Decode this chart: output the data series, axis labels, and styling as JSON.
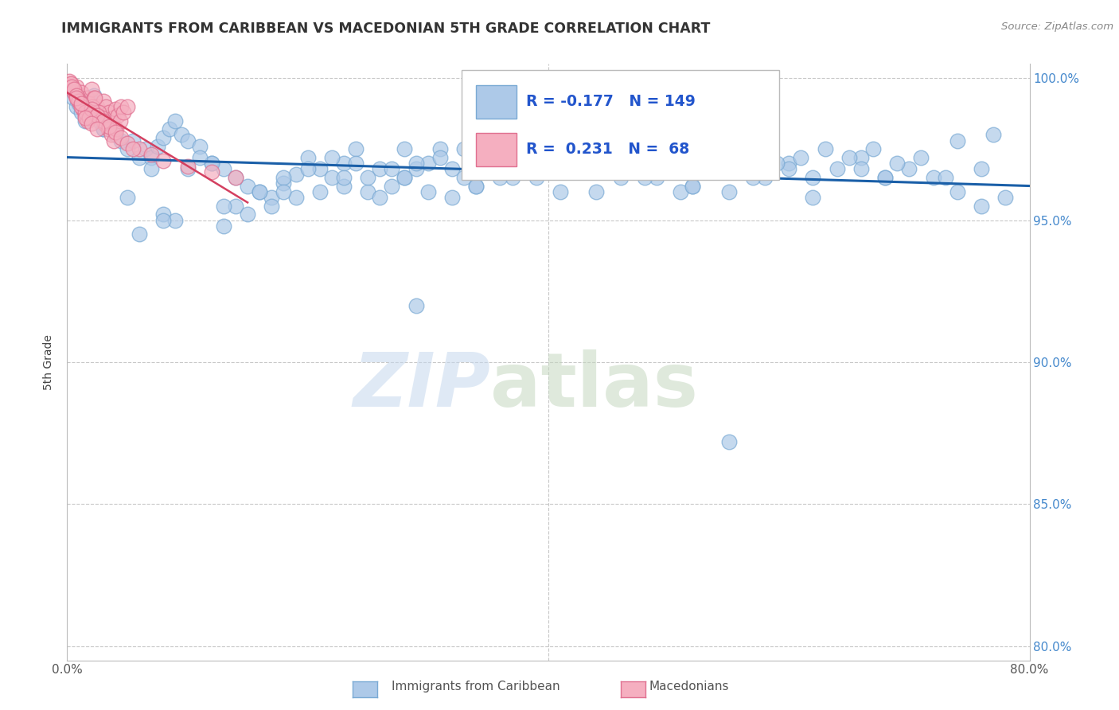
{
  "title": "IMMIGRANTS FROM CARIBBEAN VS MACEDONIAN 5TH GRADE CORRELATION CHART",
  "source": "Source: ZipAtlas.com",
  "ylabel": "5th Grade",
  "xlim": [
    0.0,
    0.8
  ],
  "ylim": [
    0.795,
    1.005
  ],
  "xtick_positions": [
    0.0,
    0.1,
    0.2,
    0.3,
    0.4,
    0.5,
    0.6,
    0.7,
    0.8
  ],
  "xticklabels": [
    "0.0%",
    "",
    "",
    "",
    "",
    "",
    "",
    "",
    "80.0%"
  ],
  "ytick_positions": [
    0.8,
    0.85,
    0.9,
    0.95,
    1.0
  ],
  "yticklabels_right": [
    "80.0%",
    "85.0%",
    "90.0%",
    "95.0%",
    "100.0%"
  ],
  "blue_R": -0.177,
  "blue_N": 149,
  "pink_R": 0.231,
  "pink_N": 68,
  "blue_color": "#adc9e8",
  "blue_edge": "#7aaad4",
  "pink_color": "#f5afc0",
  "pink_edge": "#e07090",
  "blue_line_color": "#1a5fa8",
  "pink_line_color": "#d44060",
  "legend_color": "#2255cc",
  "grid_color": "#c8c8c8",
  "blue_scatter_x": [
    0.005,
    0.008,
    0.01,
    0.012,
    0.015,
    0.018,
    0.02,
    0.022,
    0.025,
    0.028,
    0.03,
    0.035,
    0.04,
    0.045,
    0.05,
    0.055,
    0.06,
    0.065,
    0.07,
    0.075,
    0.08,
    0.085,
    0.09,
    0.095,
    0.1,
    0.11,
    0.12,
    0.13,
    0.14,
    0.15,
    0.16,
    0.17,
    0.18,
    0.19,
    0.2,
    0.21,
    0.22,
    0.23,
    0.24,
    0.25,
    0.26,
    0.27,
    0.28,
    0.29,
    0.3,
    0.31,
    0.32,
    0.33,
    0.34,
    0.35,
    0.36,
    0.37,
    0.38,
    0.39,
    0.4,
    0.42,
    0.44,
    0.46,
    0.48,
    0.5,
    0.52,
    0.54,
    0.56,
    0.58,
    0.6,
    0.62,
    0.64,
    0.66,
    0.68,
    0.7,
    0.72,
    0.74,
    0.76,
    0.78,
    0.05,
    0.08,
    0.1,
    0.12,
    0.14,
    0.16,
    0.18,
    0.2,
    0.22,
    0.24,
    0.26,
    0.28,
    0.3,
    0.32,
    0.34,
    0.36,
    0.38,
    0.4,
    0.42,
    0.44,
    0.46,
    0.55,
    0.6,
    0.65,
    0.06,
    0.09,
    0.13,
    0.15,
    0.17,
    0.19,
    0.21,
    0.23,
    0.25,
    0.27,
    0.29,
    0.31,
    0.33,
    0.35,
    0.37,
    0.39,
    0.41,
    0.43,
    0.45,
    0.47,
    0.49,
    0.51,
    0.53,
    0.57,
    0.59,
    0.61,
    0.63,
    0.66,
    0.69,
    0.71,
    0.73,
    0.76,
    0.52,
    0.48,
    0.43,
    0.38,
    0.28,
    0.23,
    0.18,
    0.13,
    0.08,
    0.67,
    0.74,
    0.77,
    0.03,
    0.07,
    0.11,
    0.55,
    0.62,
    0.68,
    0.29
  ],
  "blue_scatter_y": [
    0.993,
    0.99,
    0.991,
    0.988,
    0.985,
    0.989,
    0.992,
    0.994,
    0.987,
    0.984,
    0.982,
    0.986,
    0.98,
    0.978,
    0.975,
    0.978,
    0.972,
    0.975,
    0.972,
    0.976,
    0.979,
    0.982,
    0.985,
    0.98,
    0.978,
    0.976,
    0.97,
    0.968,
    0.965,
    0.962,
    0.96,
    0.958,
    0.963,
    0.966,
    0.972,
    0.968,
    0.965,
    0.97,
    0.975,
    0.96,
    0.958,
    0.962,
    0.965,
    0.968,
    0.97,
    0.975,
    0.968,
    0.965,
    0.962,
    0.97,
    0.975,
    0.965,
    0.968,
    0.97,
    0.972,
    0.975,
    0.96,
    0.968,
    0.97,
    0.975,
    0.962,
    0.968,
    0.972,
    0.965,
    0.97,
    0.965,
    0.968,
    0.972,
    0.965,
    0.968,
    0.965,
    0.96,
    0.955,
    0.958,
    0.958,
    0.952,
    0.968,
    0.97,
    0.955,
    0.96,
    0.965,
    0.968,
    0.972,
    0.97,
    0.968,
    0.965,
    0.96,
    0.958,
    0.962,
    0.965,
    0.97,
    0.975,
    0.972,
    0.968,
    0.965,
    0.96,
    0.968,
    0.972,
    0.945,
    0.95,
    0.948,
    0.952,
    0.955,
    0.958,
    0.96,
    0.962,
    0.965,
    0.968,
    0.97,
    0.972,
    0.975,
    0.978,
    0.98,
    0.965,
    0.96,
    0.968,
    0.972,
    0.975,
    0.965,
    0.96,
    0.968,
    0.965,
    0.97,
    0.972,
    0.975,
    0.968,
    0.97,
    0.972,
    0.965,
    0.968,
    0.962,
    0.965,
    0.968,
    0.97,
    0.975,
    0.965,
    0.96,
    0.955,
    0.95,
    0.975,
    0.978,
    0.98,
    0.982,
    0.968,
    0.972,
    0.872,
    0.958,
    0.965,
    0.92
  ],
  "pink_scatter_x": [
    0.003,
    0.005,
    0.007,
    0.008,
    0.01,
    0.012,
    0.014,
    0.016,
    0.018,
    0.02,
    0.022,
    0.025,
    0.028,
    0.03,
    0.032,
    0.035,
    0.038,
    0.04,
    0.042,
    0.045,
    0.004,
    0.006,
    0.009,
    0.011,
    0.013,
    0.015,
    0.017,
    0.019,
    0.021,
    0.023,
    0.026,
    0.029,
    0.031,
    0.034,
    0.037,
    0.039,
    0.041,
    0.044,
    0.047,
    0.05,
    0.002,
    0.003,
    0.004,
    0.006,
    0.008,
    0.01,
    0.012,
    0.015,
    0.018,
    0.02,
    0.025,
    0.03,
    0.035,
    0.04,
    0.045,
    0.05,
    0.06,
    0.07,
    0.08,
    0.1,
    0.12,
    0.14,
    0.015,
    0.02,
    0.025,
    0.008,
    0.012,
    0.055
  ],
  "pink_scatter_y": [
    0.998,
    0.996,
    0.994,
    0.997,
    0.992,
    0.995,
    0.99,
    0.993,
    0.991,
    0.996,
    0.993,
    0.99,
    0.988,
    0.992,
    0.99,
    0.988,
    0.986,
    0.989,
    0.987,
    0.99,
    0.997,
    0.995,
    0.993,
    0.991,
    0.989,
    0.987,
    0.985,
    0.988,
    0.99,
    0.993,
    0.988,
    0.986,
    0.984,
    0.982,
    0.98,
    0.978,
    0.982,
    0.985,
    0.988,
    0.99,
    0.999,
    0.998,
    0.997,
    0.996,
    0.994,
    0.992,
    0.99,
    0.988,
    0.986,
    0.989,
    0.987,
    0.985,
    0.983,
    0.981,
    0.979,
    0.977,
    0.975,
    0.973,
    0.971,
    0.969,
    0.967,
    0.965,
    0.986,
    0.984,
    0.982,
    0.993,
    0.991,
    0.975
  ]
}
